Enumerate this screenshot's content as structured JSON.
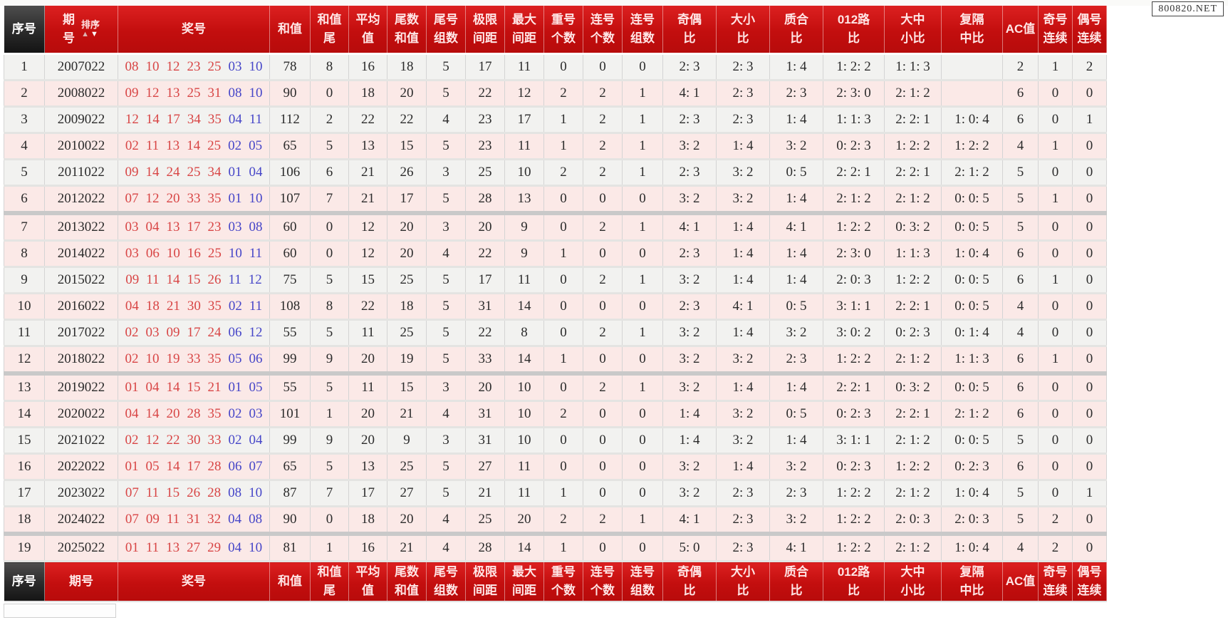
{
  "watermark": "800820.NET",
  "sort": {
    "label": "排序",
    "asc_icon": "▲",
    "desc_icon": "▼"
  },
  "colors": {
    "header_red": "#c30e0e",
    "header_dark": "#2a2a2a",
    "front_number_red": "#d84545",
    "back_number_blue": "#4646c8",
    "row_pink": "#fbe9e7",
    "row_gray": "#f2f2f0"
  },
  "columns": [
    {
      "key": "seq",
      "lines": [
        "序号"
      ]
    },
    {
      "key": "period",
      "lines": [
        "期",
        "号"
      ],
      "bottom_lines": [
        "期号"
      ]
    },
    {
      "key": "numbers",
      "lines": [
        "奖号"
      ]
    },
    {
      "key": "sum",
      "lines": [
        "和值"
      ]
    },
    {
      "key": "sum_tail",
      "lines": [
        "和值",
        "尾"
      ]
    },
    {
      "key": "avg",
      "lines": [
        "平均",
        "值"
      ]
    },
    {
      "key": "tail_sum",
      "lines": [
        "尾数",
        "和值"
      ]
    },
    {
      "key": "tail_groups",
      "lines": [
        "尾号",
        "组数"
      ]
    },
    {
      "key": "limit_gap",
      "lines": [
        "极限",
        "间距"
      ]
    },
    {
      "key": "max_gap",
      "lines": [
        "最大",
        "间距"
      ]
    },
    {
      "key": "repeat_count",
      "lines": [
        "重号",
        "个数"
      ]
    },
    {
      "key": "consec_count",
      "lines": [
        "连号",
        "个数"
      ]
    },
    {
      "key": "consec_groups",
      "lines": [
        "连号",
        "组数"
      ]
    },
    {
      "key": "odd_even",
      "lines": [
        "奇偶",
        "比"
      ]
    },
    {
      "key": "big_small",
      "lines": [
        "大小",
        "比"
      ]
    },
    {
      "key": "prime_comp",
      "lines": [
        "质合",
        "比"
      ]
    },
    {
      "key": "road012",
      "lines": [
        "012路",
        "比"
      ]
    },
    {
      "key": "big_mid_small",
      "lines": [
        "大中",
        "小比"
      ]
    },
    {
      "key": "fu_ge_zhong",
      "lines": [
        "复隔",
        "中比"
      ]
    },
    {
      "key": "ac",
      "lines": [
        "AC值"
      ]
    },
    {
      "key": "odd_streak",
      "lines": [
        "奇号",
        "连续"
      ]
    },
    {
      "key": "even_streak",
      "lines": [
        "偶号",
        "连续"
      ]
    }
  ],
  "rows": [
    {
      "seq": 1,
      "period": "2007022",
      "front": [
        "08",
        "10",
        "12",
        "23",
        "25"
      ],
      "back": [
        "03",
        "10"
      ],
      "sum": 78,
      "sum_tail": 8,
      "avg": 16,
      "tail_sum": 18,
      "tail_groups": 5,
      "limit_gap": 17,
      "max_gap": 11,
      "repeat_count": 0,
      "consec_count": 0,
      "consec_groups": 0,
      "odd_even": "2: 3",
      "big_small": "2: 3",
      "prime_comp": "1: 4",
      "road012": "1: 2: 2",
      "big_mid_small": "1: 1: 3",
      "fu_ge_zhong": "",
      "ac": 2,
      "odd_streak": 1,
      "even_streak": 2,
      "shade": "gray",
      "group_end": false
    },
    {
      "seq": 2,
      "period": "2008022",
      "front": [
        "09",
        "12",
        "13",
        "25",
        "31"
      ],
      "back": [
        "08",
        "10"
      ],
      "sum": 90,
      "sum_tail": 0,
      "avg": 18,
      "tail_sum": 20,
      "tail_groups": 5,
      "limit_gap": 22,
      "max_gap": 12,
      "repeat_count": 2,
      "consec_count": 2,
      "consec_groups": 1,
      "odd_even": "4: 1",
      "big_small": "2: 3",
      "prime_comp": "2: 3",
      "road012": "2: 3: 0",
      "big_mid_small": "2: 1: 2",
      "fu_ge_zhong": "",
      "ac": 6,
      "odd_streak": 0,
      "even_streak": 0,
      "shade": "pink",
      "group_end": false
    },
    {
      "seq": 3,
      "period": "2009022",
      "front": [
        "12",
        "14",
        "17",
        "34",
        "35"
      ],
      "back": [
        "04",
        "11"
      ],
      "sum": 112,
      "sum_tail": 2,
      "avg": 22,
      "tail_sum": 22,
      "tail_groups": 4,
      "limit_gap": 23,
      "max_gap": 17,
      "repeat_count": 1,
      "consec_count": 2,
      "consec_groups": 1,
      "odd_even": "2: 3",
      "big_small": "2: 3",
      "prime_comp": "1: 4",
      "road012": "1: 1: 3",
      "big_mid_small": "2: 2: 1",
      "fu_ge_zhong": "1: 0: 4",
      "ac": 6,
      "odd_streak": 0,
      "even_streak": 1,
      "shade": "gray",
      "group_end": false
    },
    {
      "seq": 4,
      "period": "2010022",
      "front": [
        "02",
        "11",
        "13",
        "14",
        "25"
      ],
      "back": [
        "02",
        "05"
      ],
      "sum": 65,
      "sum_tail": 5,
      "avg": 13,
      "tail_sum": 15,
      "tail_groups": 5,
      "limit_gap": 23,
      "max_gap": 11,
      "repeat_count": 1,
      "consec_count": 2,
      "consec_groups": 1,
      "odd_even": "3: 2",
      "big_small": "1: 4",
      "prime_comp": "3: 2",
      "road012": "0: 2: 3",
      "big_mid_small": "1: 2: 2",
      "fu_ge_zhong": "1: 2: 2",
      "ac": 4,
      "odd_streak": 1,
      "even_streak": 0,
      "shade": "pink",
      "group_end": false
    },
    {
      "seq": 5,
      "period": "2011022",
      "front": [
        "09",
        "14",
        "24",
        "25",
        "34"
      ],
      "back": [
        "01",
        "04"
      ],
      "sum": 106,
      "sum_tail": 6,
      "avg": 21,
      "tail_sum": 26,
      "tail_groups": 3,
      "limit_gap": 25,
      "max_gap": 10,
      "repeat_count": 2,
      "consec_count": 2,
      "consec_groups": 1,
      "odd_even": "2: 3",
      "big_small": "3: 2",
      "prime_comp": "0: 5",
      "road012": "2: 2: 1",
      "big_mid_small": "2: 2: 1",
      "fu_ge_zhong": "2: 1: 2",
      "ac": 5,
      "odd_streak": 0,
      "even_streak": 0,
      "shade": "gray",
      "group_end": false
    },
    {
      "seq": 6,
      "period": "2012022",
      "front": [
        "07",
        "12",
        "20",
        "33",
        "35"
      ],
      "back": [
        "01",
        "10"
      ],
      "sum": 107,
      "sum_tail": 7,
      "avg": 21,
      "tail_sum": 17,
      "tail_groups": 5,
      "limit_gap": 28,
      "max_gap": 13,
      "repeat_count": 0,
      "consec_count": 0,
      "consec_groups": 0,
      "odd_even": "3: 2",
      "big_small": "3: 2",
      "prime_comp": "1: 4",
      "road012": "2: 1: 2",
      "big_mid_small": "2: 1: 2",
      "fu_ge_zhong": "0: 0: 5",
      "ac": 5,
      "odd_streak": 1,
      "even_streak": 0,
      "shade": "pink",
      "group_end": true
    },
    {
      "seq": 7,
      "period": "2013022",
      "front": [
        "03",
        "04",
        "13",
        "17",
        "23"
      ],
      "back": [
        "03",
        "08"
      ],
      "sum": 60,
      "sum_tail": 0,
      "avg": 12,
      "tail_sum": 20,
      "tail_groups": 3,
      "limit_gap": 20,
      "max_gap": 9,
      "repeat_count": 0,
      "consec_count": 2,
      "consec_groups": 1,
      "odd_even": "4: 1",
      "big_small": "1: 4",
      "prime_comp": "4: 1",
      "road012": "1: 2: 2",
      "big_mid_small": "0: 3: 2",
      "fu_ge_zhong": "0: 0: 5",
      "ac": 5,
      "odd_streak": 0,
      "even_streak": 0,
      "shade": "pink",
      "group_end": false
    },
    {
      "seq": 8,
      "period": "2014022",
      "front": [
        "03",
        "06",
        "10",
        "16",
        "25"
      ],
      "back": [
        "10",
        "11"
      ],
      "sum": 60,
      "sum_tail": 0,
      "avg": 12,
      "tail_sum": 20,
      "tail_groups": 4,
      "limit_gap": 22,
      "max_gap": 9,
      "repeat_count": 1,
      "consec_count": 0,
      "consec_groups": 0,
      "odd_even": "2: 3",
      "big_small": "1: 4",
      "prime_comp": "1: 4",
      "road012": "2: 3: 0",
      "big_mid_small": "1: 1: 3",
      "fu_ge_zhong": "1: 0: 4",
      "ac": 6,
      "odd_streak": 0,
      "even_streak": 0,
      "shade": "pink",
      "group_end": false
    },
    {
      "seq": 9,
      "period": "2015022",
      "front": [
        "09",
        "11",
        "14",
        "15",
        "26"
      ],
      "back": [
        "11",
        "12"
      ],
      "sum": 75,
      "sum_tail": 5,
      "avg": 15,
      "tail_sum": 25,
      "tail_groups": 5,
      "limit_gap": 17,
      "max_gap": 11,
      "repeat_count": 0,
      "consec_count": 2,
      "consec_groups": 1,
      "odd_even": "3: 2",
      "big_small": "1: 4",
      "prime_comp": "1: 4",
      "road012": "2: 0: 3",
      "big_mid_small": "1: 2: 2",
      "fu_ge_zhong": "0: 0: 5",
      "ac": 6,
      "odd_streak": 1,
      "even_streak": 0,
      "shade": "gray",
      "group_end": false
    },
    {
      "seq": 10,
      "period": "2016022",
      "front": [
        "04",
        "18",
        "21",
        "30",
        "35"
      ],
      "back": [
        "02",
        "11"
      ],
      "sum": 108,
      "sum_tail": 8,
      "avg": 22,
      "tail_sum": 18,
      "tail_groups": 5,
      "limit_gap": 31,
      "max_gap": 14,
      "repeat_count": 0,
      "consec_count": 0,
      "consec_groups": 0,
      "odd_even": "2: 3",
      "big_small": "4: 1",
      "prime_comp": "0: 5",
      "road012": "3: 1: 1",
      "big_mid_small": "2: 2: 1",
      "fu_ge_zhong": "0: 0: 5",
      "ac": 4,
      "odd_streak": 0,
      "even_streak": 0,
      "shade": "pink",
      "group_end": false
    },
    {
      "seq": 11,
      "period": "2017022",
      "front": [
        "02",
        "03",
        "09",
        "17",
        "24"
      ],
      "back": [
        "06",
        "12"
      ],
      "sum": 55,
      "sum_tail": 5,
      "avg": 11,
      "tail_sum": 25,
      "tail_groups": 5,
      "limit_gap": 22,
      "max_gap": 8,
      "repeat_count": 0,
      "consec_count": 2,
      "consec_groups": 1,
      "odd_even": "3: 2",
      "big_small": "1: 4",
      "prime_comp": "3: 2",
      "road012": "3: 0: 2",
      "big_mid_small": "0: 2: 3",
      "fu_ge_zhong": "0: 1: 4",
      "ac": 4,
      "odd_streak": 0,
      "even_streak": 0,
      "shade": "gray",
      "group_end": false
    },
    {
      "seq": 12,
      "period": "2018022",
      "front": [
        "02",
        "10",
        "19",
        "33",
        "35"
      ],
      "back": [
        "05",
        "06"
      ],
      "sum": 99,
      "sum_tail": 9,
      "avg": 20,
      "tail_sum": 19,
      "tail_groups": 5,
      "limit_gap": 33,
      "max_gap": 14,
      "repeat_count": 1,
      "consec_count": 0,
      "consec_groups": 0,
      "odd_even": "3: 2",
      "big_small": "3: 2",
      "prime_comp": "2: 3",
      "road012": "1: 2: 2",
      "big_mid_small": "2: 1: 2",
      "fu_ge_zhong": "1: 1: 3",
      "ac": 6,
      "odd_streak": 1,
      "even_streak": 0,
      "shade": "pink",
      "group_end": true
    },
    {
      "seq": 13,
      "period": "2019022",
      "front": [
        "01",
        "04",
        "14",
        "15",
        "21"
      ],
      "back": [
        "01",
        "05"
      ],
      "sum": 55,
      "sum_tail": 5,
      "avg": 11,
      "tail_sum": 15,
      "tail_groups": 3,
      "limit_gap": 20,
      "max_gap": 10,
      "repeat_count": 0,
      "consec_count": 2,
      "consec_groups": 1,
      "odd_even": "3: 2",
      "big_small": "1: 4",
      "prime_comp": "1: 4",
      "road012": "2: 2: 1",
      "big_mid_small": "0: 3: 2",
      "fu_ge_zhong": "0: 0: 5",
      "ac": 6,
      "odd_streak": 0,
      "even_streak": 0,
      "shade": "pink",
      "group_end": false
    },
    {
      "seq": 14,
      "period": "2020022",
      "front": [
        "04",
        "14",
        "20",
        "28",
        "35"
      ],
      "back": [
        "02",
        "03"
      ],
      "sum": 101,
      "sum_tail": 1,
      "avg": 20,
      "tail_sum": 21,
      "tail_groups": 4,
      "limit_gap": 31,
      "max_gap": 10,
      "repeat_count": 2,
      "consec_count": 0,
      "consec_groups": 0,
      "odd_even": "1: 4",
      "big_small": "3: 2",
      "prime_comp": "0: 5",
      "road012": "0: 2: 3",
      "big_mid_small": "2: 2: 1",
      "fu_ge_zhong": "2: 1: 2",
      "ac": 6,
      "odd_streak": 0,
      "even_streak": 0,
      "shade": "pink",
      "group_end": false
    },
    {
      "seq": 15,
      "period": "2021022",
      "front": [
        "02",
        "12",
        "22",
        "30",
        "33"
      ],
      "back": [
        "02",
        "04"
      ],
      "sum": 99,
      "sum_tail": 9,
      "avg": 20,
      "tail_sum": 9,
      "tail_groups": 3,
      "limit_gap": 31,
      "max_gap": 10,
      "repeat_count": 0,
      "consec_count": 0,
      "consec_groups": 0,
      "odd_even": "1: 4",
      "big_small": "3: 2",
      "prime_comp": "1: 4",
      "road012": "3: 1: 1",
      "big_mid_small": "2: 1: 2",
      "fu_ge_zhong": "0: 0: 5",
      "ac": 5,
      "odd_streak": 0,
      "even_streak": 0,
      "shade": "gray",
      "group_end": false
    },
    {
      "seq": 16,
      "period": "2022022",
      "front": [
        "01",
        "05",
        "14",
        "17",
        "28"
      ],
      "back": [
        "06",
        "07"
      ],
      "sum": 65,
      "sum_tail": 5,
      "avg": 13,
      "tail_sum": 25,
      "tail_groups": 5,
      "limit_gap": 27,
      "max_gap": 11,
      "repeat_count": 0,
      "consec_count": 0,
      "consec_groups": 0,
      "odd_even": "3: 2",
      "big_small": "1: 4",
      "prime_comp": "3: 2",
      "road012": "0: 2: 3",
      "big_mid_small": "1: 2: 2",
      "fu_ge_zhong": "0: 2: 3",
      "ac": 6,
      "odd_streak": 0,
      "even_streak": 0,
      "shade": "pink",
      "group_end": false
    },
    {
      "seq": 17,
      "period": "2023022",
      "front": [
        "07",
        "11",
        "15",
        "26",
        "28"
      ],
      "back": [
        "08",
        "10"
      ],
      "sum": 87,
      "sum_tail": 7,
      "avg": 17,
      "tail_sum": 27,
      "tail_groups": 5,
      "limit_gap": 21,
      "max_gap": 11,
      "repeat_count": 1,
      "consec_count": 0,
      "consec_groups": 0,
      "odd_even": "3: 2",
      "big_small": "2: 3",
      "prime_comp": "2: 3",
      "road012": "1: 2: 2",
      "big_mid_small": "2: 1: 2",
      "fu_ge_zhong": "1: 0: 4",
      "ac": 5,
      "odd_streak": 0,
      "even_streak": 1,
      "shade": "gray",
      "group_end": false
    },
    {
      "seq": 18,
      "period": "2024022",
      "front": [
        "07",
        "09",
        "11",
        "31",
        "32"
      ],
      "back": [
        "04",
        "08"
      ],
      "sum": 90,
      "sum_tail": 0,
      "avg": 18,
      "tail_sum": 20,
      "tail_groups": 4,
      "limit_gap": 25,
      "max_gap": 20,
      "repeat_count": 2,
      "consec_count": 2,
      "consec_groups": 1,
      "odd_even": "4: 1",
      "big_small": "2: 3",
      "prime_comp": "3: 2",
      "road012": "1: 2: 2",
      "big_mid_small": "2: 0: 3",
      "fu_ge_zhong": "2: 0: 3",
      "ac": 5,
      "odd_streak": 2,
      "even_streak": 0,
      "shade": "pink",
      "group_end": true
    },
    {
      "seq": 19,
      "period": "2025022",
      "front": [
        "01",
        "11",
        "13",
        "27",
        "29"
      ],
      "back": [
        "04",
        "10"
      ],
      "sum": 81,
      "sum_tail": 1,
      "avg": 16,
      "tail_sum": 21,
      "tail_groups": 4,
      "limit_gap": 28,
      "max_gap": 14,
      "repeat_count": 1,
      "consec_count": 0,
      "consec_groups": 0,
      "odd_even": "5: 0",
      "big_small": "2: 3",
      "prime_comp": "4: 1",
      "road012": "1: 2: 2",
      "big_mid_small": "2: 1: 2",
      "fu_ge_zhong": "1: 0: 4",
      "ac": 4,
      "odd_streak": 2,
      "even_streak": 0,
      "shade": "pink",
      "group_end": false
    }
  ]
}
